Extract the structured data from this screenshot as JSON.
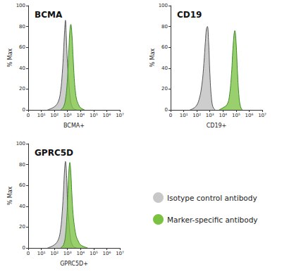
{
  "chart_data": [
    {
      "type": "area",
      "title": "BCMA",
      "x_label": "BCMA+",
      "y_label": "% Max",
      "xlim": [
        0,
        10000000
      ],
      "xticks": [
        0,
        {
          "value": 10,
          "label": "10¹"
        },
        {
          "value": 100,
          "label": "10²"
        },
        {
          "value": 1000,
          "label": "10³"
        },
        {
          "value": 10000,
          "label": "10⁴"
        },
        {
          "value": 100000,
          "label": "10⁵"
        },
        {
          "value": 1000000,
          "label": "10⁶"
        },
        {
          "value": 10000000,
          "label": "10⁷"
        }
      ],
      "ylim": [
        0,
        100
      ],
      "yticks": [
        0,
        20,
        40,
        60,
        80,
        100
      ],
      "grid": false,
      "series": [
        {
          "name": "Isotype control antibody",
          "color": "#c8c8c8",
          "x": [
            30,
            100,
            200,
            300,
            400,
            500,
            600,
            700,
            800,
            1000,
            1300,
            1600,
            2000,
            3000,
            5000
          ],
          "values": [
            0,
            3,
            8,
            18,
            35,
            55,
            75,
            86,
            72,
            45,
            25,
            12,
            5,
            1,
            0
          ]
        },
        {
          "name": "Marker-specific antibody",
          "color": "#7cc242",
          "x": [
            300,
            500,
            700,
            900,
            1100,
            1300,
            1500,
            1800,
            2200,
            2700,
            3300,
            4000,
            5000,
            7000,
            10000,
            20000
          ],
          "values": [
            0,
            3,
            10,
            22,
            40,
            60,
            75,
            82,
            72,
            50,
            30,
            18,
            10,
            5,
            2,
            0
          ]
        }
      ]
    },
    {
      "type": "area",
      "title": "CD19",
      "x_label": "CD19+",
      "y_label": "% Max",
      "xlim": [
        0,
        10000000
      ],
      "xticks": [
        0,
        {
          "value": 10,
          "label": "10¹"
        },
        {
          "value": 100,
          "label": "10²"
        },
        {
          "value": 1000,
          "label": "10³"
        },
        {
          "value": 10000,
          "label": "10⁴"
        },
        {
          "value": 100000,
          "label": "10⁵"
        },
        {
          "value": 1000000,
          "label": "10⁶"
        },
        {
          "value": 10000000,
          "label": "10⁷"
        }
      ],
      "ylim": [
        0,
        100
      ],
      "yticks": [
        0,
        20,
        40,
        60,
        80,
        100
      ],
      "grid": false,
      "series": [
        {
          "name": "Isotype control antibody",
          "color": "#c8c8c8",
          "x": [
            30,
            80,
            150,
            250,
            350,
            450,
            550,
            650,
            800,
            1000,
            1300,
            1700,
            2500
          ],
          "values": [
            0,
            3,
            10,
            25,
            45,
            65,
            78,
            80,
            65,
            35,
            12,
            3,
            0
          ]
        },
        {
          "name": "Marker-specific antibody",
          "color": "#7cc242",
          "x": [
            5000,
            10000,
            20000,
            30000,
            45000,
            60000,
            80000,
            100000,
            130000,
            170000,
            220000,
            300000
          ],
          "values": [
            0,
            2,
            5,
            12,
            35,
            62,
            76,
            65,
            35,
            12,
            3,
            0
          ]
        }
      ]
    },
    {
      "type": "area",
      "title": "GPRC5D",
      "x_label": "GPRC5D+",
      "y_label": "% Max",
      "xlim": [
        0,
        10000000
      ],
      "xticks": [
        0,
        {
          "value": 10,
          "label": "10¹"
        },
        {
          "value": 100,
          "label": "10²"
        },
        {
          "value": 1000,
          "label": "10³"
        },
        {
          "value": 10000,
          "label": "10⁴"
        },
        {
          "value": 100000,
          "label": "10⁵"
        },
        {
          "value": 1000000,
          "label": "10⁶"
        },
        {
          "value": 10000000,
          "label": "10⁷"
        }
      ],
      "ylim": [
        0,
        100
      ],
      "yticks": [
        0,
        20,
        40,
        60,
        80,
        100
      ],
      "grid": false,
      "legend": "right",
      "series": [
        {
          "name": "Isotype control antibody",
          "color": "#c8c8c8",
          "x": [
            30,
            100,
            200,
            300,
            400,
            500,
            600,
            700,
            850,
            1000,
            1300,
            1600,
            2000,
            3000,
            5000
          ],
          "values": [
            0,
            3,
            8,
            18,
            35,
            55,
            75,
            83,
            70,
            45,
            25,
            12,
            5,
            1,
            0
          ]
        },
        {
          "name": "Marker-specific antibody",
          "color": "#7cc242",
          "x": [
            300,
            500,
            700,
            900,
            1100,
            1300,
            1500,
            1800,
            2200,
            2700,
            3300,
            4000,
            5000,
            7000,
            10000,
            20000,
            35000
          ],
          "values": [
            0,
            3,
            12,
            30,
            55,
            75,
            82,
            72,
            50,
            32,
            22,
            15,
            10,
            6,
            3,
            1,
            0
          ]
        }
      ]
    }
  ]
}
